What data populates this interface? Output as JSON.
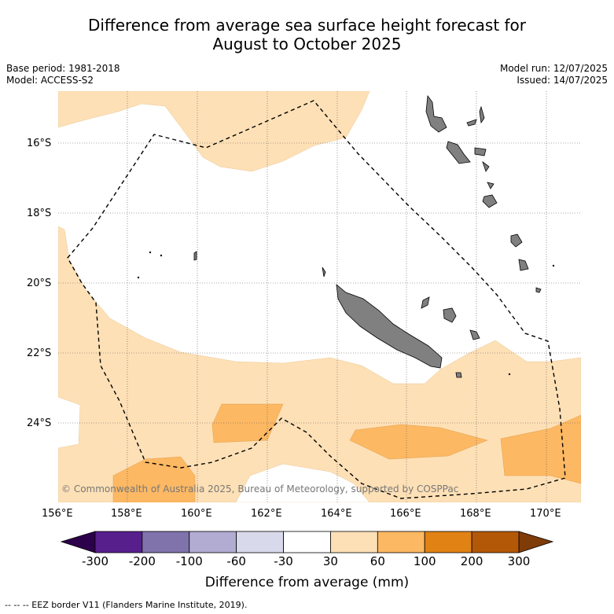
{
  "title_line1": "Difference from average sea surface height forecast for",
  "title_line2": "August to October 2025",
  "meta_left": {
    "base_period": "Base period: 1981-2018",
    "model": "Model: ACCESS-S2"
  },
  "meta_right": {
    "model_run": "Model run: 12/07/2025",
    "issued": "Issued: 14/07/2025"
  },
  "map": {
    "lat_labels": [
      "16°S",
      "18°S",
      "20°S",
      "22°S",
      "24°S"
    ],
    "lon_labels": [
      "156°E",
      "158°E",
      "160°E",
      "162°E",
      "164°E",
      "166°E",
      "168°E",
      "170°E"
    ],
    "copyright": "© Commonwealth of Australia 2025, Bureau of Meteorology, supported by COSPPac"
  },
  "colorbar": {
    "ticks": [
      "-300",
      "-200",
      "-100",
      "-60",
      "-30",
      "30",
      "60",
      "100",
      "200",
      "300"
    ],
    "colors": [
      "#561f8c",
      "#8073ac",
      "#b2abd2",
      "#d8daeb",
      "#ffffff",
      "#fee0b6",
      "#fdb863",
      "#e08214",
      "#b35806"
    ],
    "under_color": "#2d004b",
    "over_color": "#7f3b08",
    "label": "Difference from average (mm)"
  },
  "footer": "--  --  -- EEZ border V11 (Flanders Marine Institute, 2019)."
}
